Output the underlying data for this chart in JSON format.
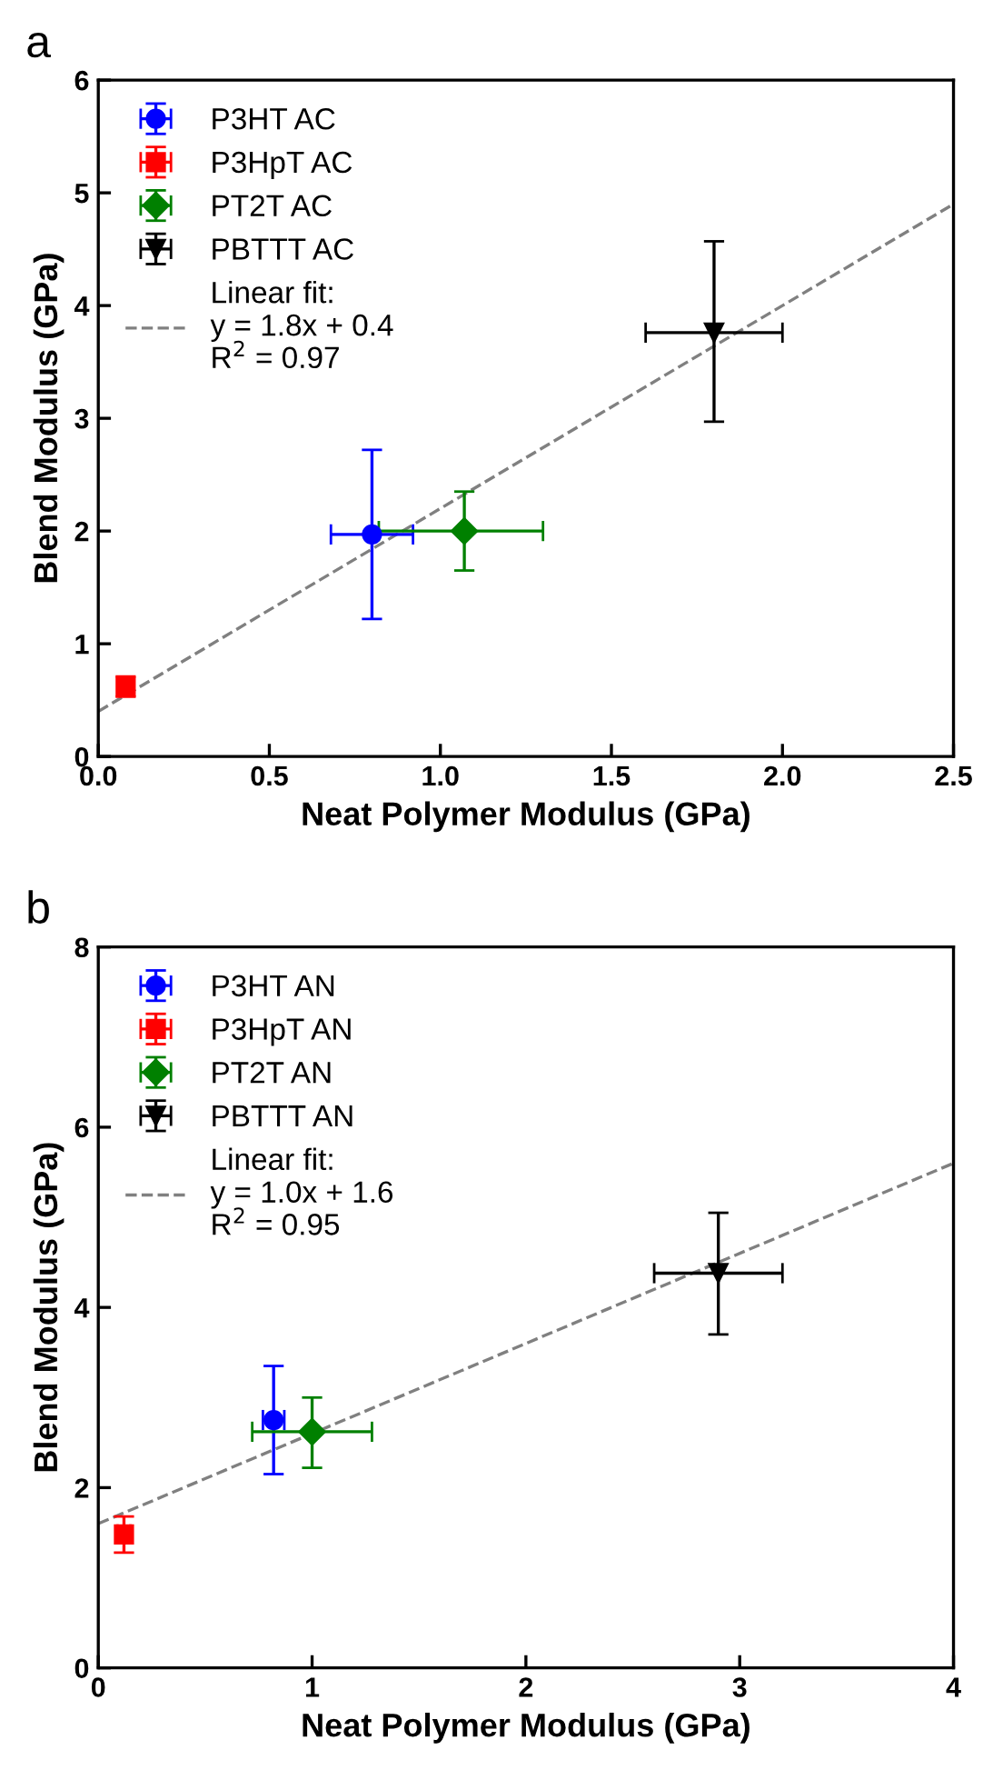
{
  "chart_data": [
    {
      "type": "scatter",
      "title": "a",
      "xlabel": "Neat Polymer Modulus (GPa)",
      "ylabel": "Blend Modulus (GPa)",
      "xlim": [
        0,
        2.5
      ],
      "ylim": [
        0,
        6
      ],
      "xticks": [
        {
          "value": 0,
          "label": "0.0"
        },
        0.5,
        {
          "value": 1,
          "label": "1.0"
        },
        1.5,
        {
          "value": 2,
          "label": "2.0"
        },
        2.5
      ],
      "yticks": [
        0,
        1,
        2,
        3,
        4,
        5,
        6
      ],
      "legend": "top left",
      "grid": false,
      "series": [
        {
          "name": "P3HT AC",
          "color": "#0000ff",
          "marker": "circle",
          "x": [
            0.8
          ],
          "values": [
            1.97
          ],
          "errors": [
            [
              1.22,
              2.72
            ]
          ],
          "xerrors": [
            [
              0.68,
              0.92
            ]
          ]
        },
        {
          "name": "P3HpT AC",
          "color": "#ff0000",
          "marker": "square",
          "x": [
            0.08
          ],
          "values": [
            0.62
          ],
          "errors": [
            [
              0.53,
              0.71
            ]
          ],
          "xerrors": [
            [
              0.06,
              0.1
            ]
          ]
        },
        {
          "name": "PT2T AC",
          "color": "#008000",
          "marker": "diamond",
          "x": [
            1.07
          ],
          "values": [
            2.0
          ],
          "errors": [
            [
              1.65,
              2.35
            ]
          ],
          "xerrors": [
            [
              0.82,
              1.3
            ]
          ]
        },
        {
          "name": "PBTTT AC",
          "color": "#000000",
          "marker": "triangle",
          "x": [
            1.8
          ],
          "values": [
            3.76
          ],
          "errors": [
            [
              2.97,
              4.57
            ]
          ],
          "xerrors": [
            [
              1.6,
              2.0
            ]
          ]
        },
        {
          "name": "Linear fit:\ny = 1.8x + 0.4\nR$^{2}$ = 0.97",
          "type": "line",
          "color": "#808080",
          "line_style": "dashed",
          "marker": "none",
          "x": [
            0,
            2.5
          ],
          "values": [
            0.4,
            4.9
          ]
        }
      ]
    },
    {
      "type": "scatter",
      "title": "b",
      "xlabel": "Neat Polymer Modulus (GPa)",
      "ylabel": "Blend Modulus (GPa)",
      "xlim": [
        0,
        4
      ],
      "ylim": [
        0,
        8
      ],
      "xticks": [
        0,
        1,
        2,
        3,
        4
      ],
      "yticks": [
        0,
        2,
        4,
        6,
        8
      ],
      "legend": "top left",
      "grid": false,
      "series": [
        {
          "name": "P3HT AN",
          "color": "#0000ff",
          "marker": "circle",
          "x": [
            0.82
          ],
          "values": [
            2.75
          ],
          "errors": [
            [
              2.15,
              3.35
            ]
          ],
          "xerrors": [
            [
              0.77,
              0.87
            ]
          ]
        },
        {
          "name": "P3HpT AN",
          "color": "#ff0000",
          "marker": "square",
          "x": [
            0.12
          ],
          "values": [
            1.48
          ],
          "errors": [
            [
              1.28,
              1.68
            ]
          ],
          "xerrors": [
            [
              0.09,
              0.15
            ]
          ]
        },
        {
          "name": "PT2T AN",
          "color": "#008000",
          "marker": "diamond",
          "x": [
            1.0
          ],
          "values": [
            2.62
          ],
          "errors": [
            [
              2.22,
              3.0
            ]
          ],
          "xerrors": [
            [
              0.72,
              1.28
            ]
          ]
        },
        {
          "name": "PBTTT AN",
          "color": "#000000",
          "marker": "triangle",
          "x": [
            2.9
          ],
          "values": [
            4.38
          ],
          "errors": [
            [
              3.7,
              5.05
            ]
          ],
          "xerrors": [
            [
              2.6,
              3.2
            ]
          ]
        },
        {
          "name": "Linear fit:\ny = 1.0x + 1.6\nR$^{2}$ = 0.95",
          "type": "line",
          "color": "#808080",
          "line_style": "dashed",
          "marker": "none",
          "x": [
            0,
            4
          ],
          "values": [
            1.6,
            5.6
          ]
        }
      ]
    }
  ]
}
